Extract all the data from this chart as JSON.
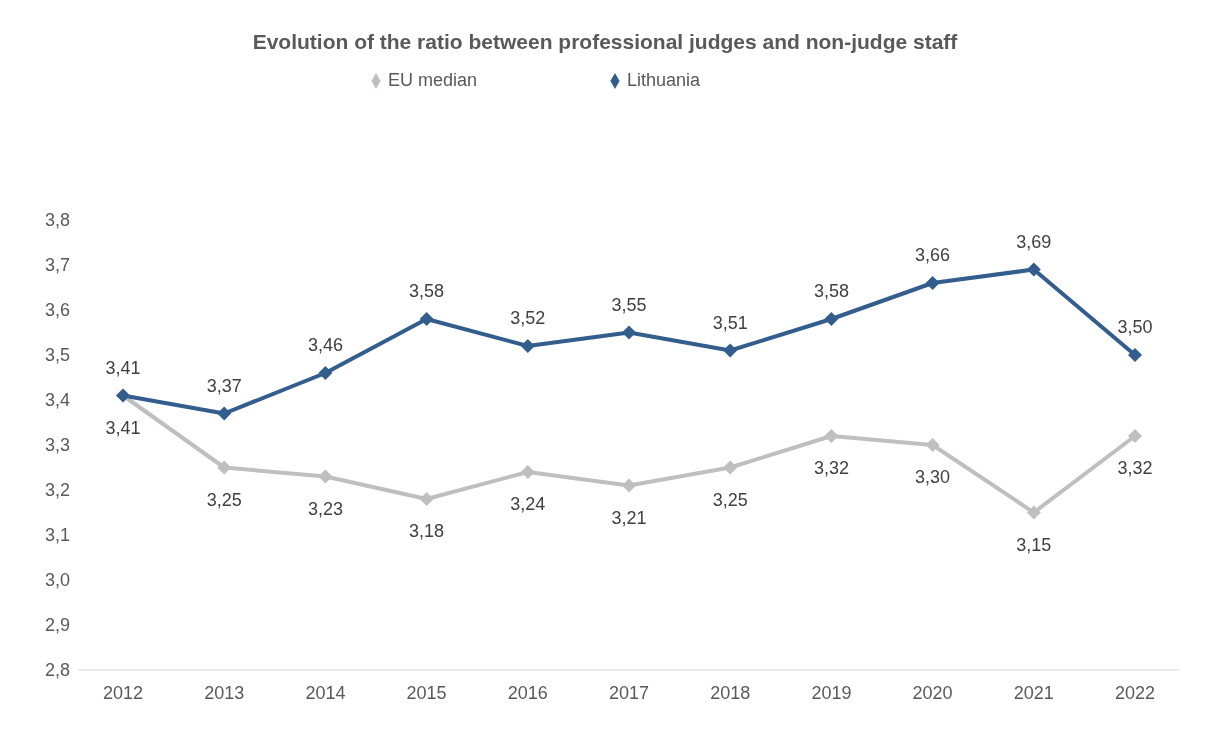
{
  "chart_data": {
    "type": "line",
    "title": "Evolution of the ratio between professional judges and non-judge staff",
    "categories": [
      "2012",
      "2013",
      "2014",
      "2015",
      "2016",
      "2017",
      "2018",
      "2019",
      "2020",
      "2021",
      "2022"
    ],
    "series": [
      {
        "name": "EU median",
        "color": "#bfbfbf",
        "values": [
          3.41,
          3.25,
          3.23,
          3.18,
          3.24,
          3.21,
          3.25,
          3.32,
          3.3,
          3.15,
          3.32
        ],
        "value_labels": [
          "3,41",
          "3,25",
          "3,23",
          "3,18",
          "3,24",
          "3,21",
          "3,25",
          "3,32",
          "3,30",
          "3,15",
          "3,32"
        ]
      },
      {
        "name": "Lithuania",
        "color": "#325d8c",
        "values": [
          3.41,
          3.37,
          3.46,
          3.58,
          3.52,
          3.55,
          3.51,
          3.58,
          3.66,
          3.69,
          3.5
        ],
        "value_labels": [
          "3,41",
          "3,37",
          "3,46",
          "3,58",
          "3,52",
          "3,55",
          "3,51",
          "3,58",
          "3,66",
          "3,69",
          "3,50"
        ]
      }
    ],
    "ylim": [
      2.8,
      3.8
    ],
    "yticks": [
      {
        "value": 2.8,
        "label": "2,8"
      },
      {
        "value": 2.9,
        "label": "2,9"
      },
      {
        "value": 3.0,
        "label": "3,0"
      },
      {
        "value": 3.1,
        "label": "3,1"
      },
      {
        "value": 3.2,
        "label": "3,2"
      },
      {
        "value": 3.3,
        "label": "3,3"
      },
      {
        "value": 3.4,
        "label": "3,4"
      },
      {
        "value": 3.5,
        "label": "3,5"
      },
      {
        "value": 3.6,
        "label": "3,6"
      },
      {
        "value": 3.7,
        "label": "3,7"
      },
      {
        "value": 3.8,
        "label": "3,8"
      }
    ],
    "grid": false,
    "legend": "top",
    "marker": "diamond",
    "line_style": "solid"
  }
}
